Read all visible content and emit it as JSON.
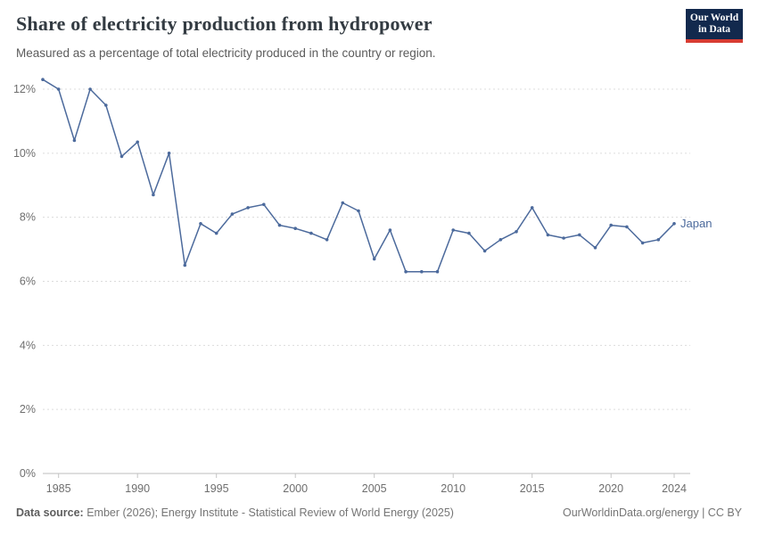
{
  "header": {
    "title": "Share of electricity production from hydropower",
    "subtitle": "Measured as a percentage of total electricity produced in the country or region."
  },
  "logo": {
    "line1": "Our World",
    "line2": "in Data"
  },
  "chart_data": {
    "type": "line",
    "title": "Share of electricity production from hydropower",
    "xlabel": "",
    "ylabel": "",
    "xlim": [
      1984,
      2024
    ],
    "ylim": [
      0,
      12
    ],
    "grid": true,
    "x": [
      1984,
      1985,
      1986,
      1987,
      1988,
      1989,
      1990,
      1991,
      1992,
      1993,
      1994,
      1995,
      1996,
      1997,
      1998,
      1999,
      2000,
      2001,
      2002,
      2003,
      2004,
      2005,
      2006,
      2007,
      2008,
      2009,
      2010,
      2011,
      2012,
      2013,
      2014,
      2015,
      2016,
      2017,
      2018,
      2019,
      2020,
      2021,
      2022,
      2023,
      2024
    ],
    "series": [
      {
        "name": "Japan",
        "color": "#4c6a9c",
        "values": [
          12.3,
          12.0,
          10.4,
          12.0,
          11.5,
          9.9,
          10.35,
          8.7,
          10.0,
          6.5,
          7.8,
          7.5,
          8.1,
          8.3,
          8.4,
          7.75,
          7.65,
          7.5,
          7.3,
          8.45,
          8.2,
          6.7,
          7.6,
          6.3,
          6.3,
          6.3,
          7.6,
          7.5,
          6.95,
          7.3,
          7.55,
          8.3,
          7.45,
          7.35,
          7.45,
          7.05,
          7.75,
          7.7,
          7.2,
          7.3,
          7.8
        ]
      }
    ],
    "yticks": [
      {
        "value": 0,
        "label": "0%"
      },
      {
        "value": 2,
        "label": "2%"
      },
      {
        "value": 4,
        "label": "4%"
      },
      {
        "value": 6,
        "label": "6%"
      },
      {
        "value": 8,
        "label": "8%"
      },
      {
        "value": 10,
        "label": "10%"
      },
      {
        "value": 12,
        "label": "12%"
      }
    ],
    "xticks": [
      {
        "value": 1985,
        "label": "1985"
      },
      {
        "value": 1990,
        "label": "1990"
      },
      {
        "value": 1995,
        "label": "1995"
      },
      {
        "value": 2000,
        "label": "2000"
      },
      {
        "value": 2005,
        "label": "2005"
      },
      {
        "value": 2010,
        "label": "2010"
      },
      {
        "value": 2015,
        "label": "2015"
      },
      {
        "value": 2020,
        "label": "2020"
      },
      {
        "value": 2024,
        "label": "2024"
      }
    ],
    "legend_position": "end-of-line"
  },
  "footer": {
    "datasource_label": "Data source:",
    "datasource_text": " Ember (2026); Energy Institute - Statistical Review of World Energy (2025)",
    "right_text": "OurWorldinData.org/energy | CC BY"
  }
}
